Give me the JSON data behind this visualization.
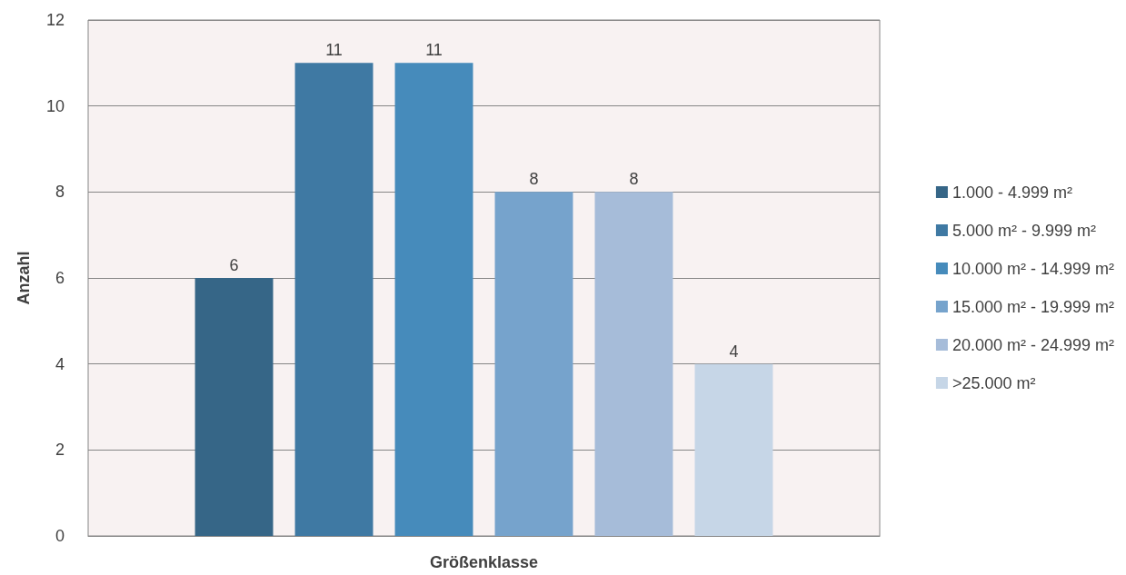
{
  "chart_data": {
    "type": "bar",
    "xlabel": "Größenklasse",
    "ylabel": "Anzahl",
    "categories": [
      null
    ],
    "series": [
      {
        "name": "1.000 - 4.999 m²",
        "color": "#366687",
        "values": [
          6
        ]
      },
      {
        "name": "5.000 m² - 9.999 m²",
        "color": "#3f79a3",
        "values": [
          11
        ]
      },
      {
        "name": "10.000 m² - 14.999 m²",
        "color": "#468bbb",
        "values": [
          11
        ]
      },
      {
        "name": "15.000 m² - 19.999 m²",
        "color": "#76a3cc",
        "values": [
          8
        ]
      },
      {
        "name": "20.000 m² - 24.999 m²",
        "color": "#a6bcd9",
        "values": [
          8
        ]
      },
      {
        "name": ">25.000 m²",
        "color": "#c6d6e7",
        "values": [
          4
        ]
      }
    ],
    "ylim": [
      0,
      12
    ],
    "yticks": [
      0,
      2,
      4,
      6,
      8,
      10,
      12
    ],
    "grid": "y",
    "legend": "right",
    "data_labels": true
  }
}
